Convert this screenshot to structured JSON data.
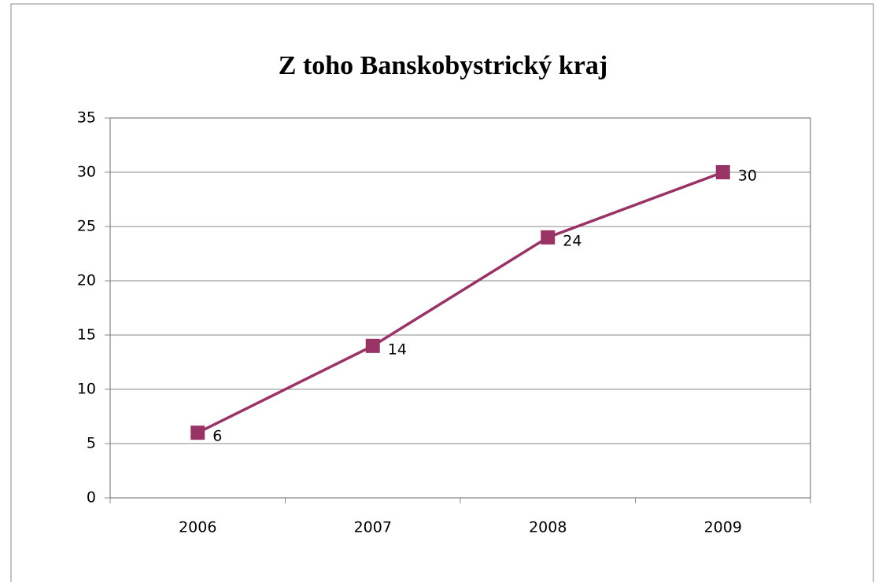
{
  "chart_data": {
    "type": "line",
    "title": "Z toho Banskobystrický kraj",
    "categories": [
      "2006",
      "2007",
      "2008",
      "2009"
    ],
    "series": [
      {
        "name": "Z toho Banskobystrický kraj",
        "color": "#993366",
        "values": [
          6,
          14,
          24,
          30
        ]
      }
    ],
    "ylim": [
      0,
      35
    ],
    "yticks": [
      0,
      5,
      10,
      15,
      20,
      25,
      30,
      35
    ],
    "grid": true,
    "data_labels": true
  }
}
